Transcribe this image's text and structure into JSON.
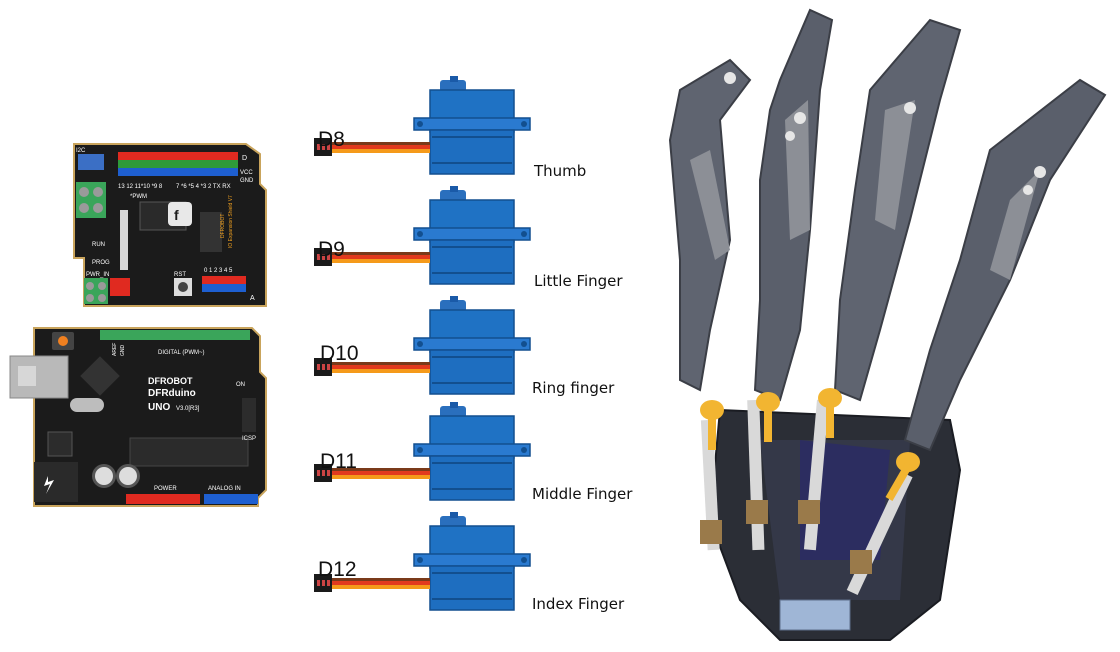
{
  "wiring": [
    {
      "pin": "D8",
      "finger": "Thumb"
    },
    {
      "pin": "D9",
      "finger": "Little Finger"
    },
    {
      "pin": "D10",
      "finger": "Ring finger"
    },
    {
      "pin": "D11",
      "finger": "Middle Finger"
    },
    {
      "pin": "D12",
      "finger": "Index Finger"
    }
  ],
  "shield_board": {
    "brand": "DFROBOT",
    "name": "IO Expansion Shield V7",
    "labels": [
      "I2C",
      "RUN",
      "PROG",
      "PWR_IN",
      "RST",
      "*PWM",
      "GND",
      "VCC",
      "D",
      "A",
      "13 12 11*10 *9 8",
      "7 *6 *5 4 *3 2 TX RX",
      "0 1 2 3 4 5"
    ]
  },
  "uno_board": {
    "brand": "DFROBOT",
    "name": "DFRduino",
    "model": "UNO",
    "version": "V3.0[R3]",
    "labels": [
      "DIGITAL (PWM~)",
      "ON",
      "ICSP",
      "POWER",
      "ANALOG IN",
      "AREF",
      "GND"
    ]
  },
  "colors": {
    "servo_body": "#1f72c4",
    "servo_dark": "#1458a0",
    "wire_brown": "#7a3a1a",
    "wire_red": "#e23a1e",
    "wire_orange": "#f59a1a",
    "pcb": "#1b1b1b",
    "hand_grey": "#5f6470",
    "tendon_yellow": "#f2b531"
  }
}
